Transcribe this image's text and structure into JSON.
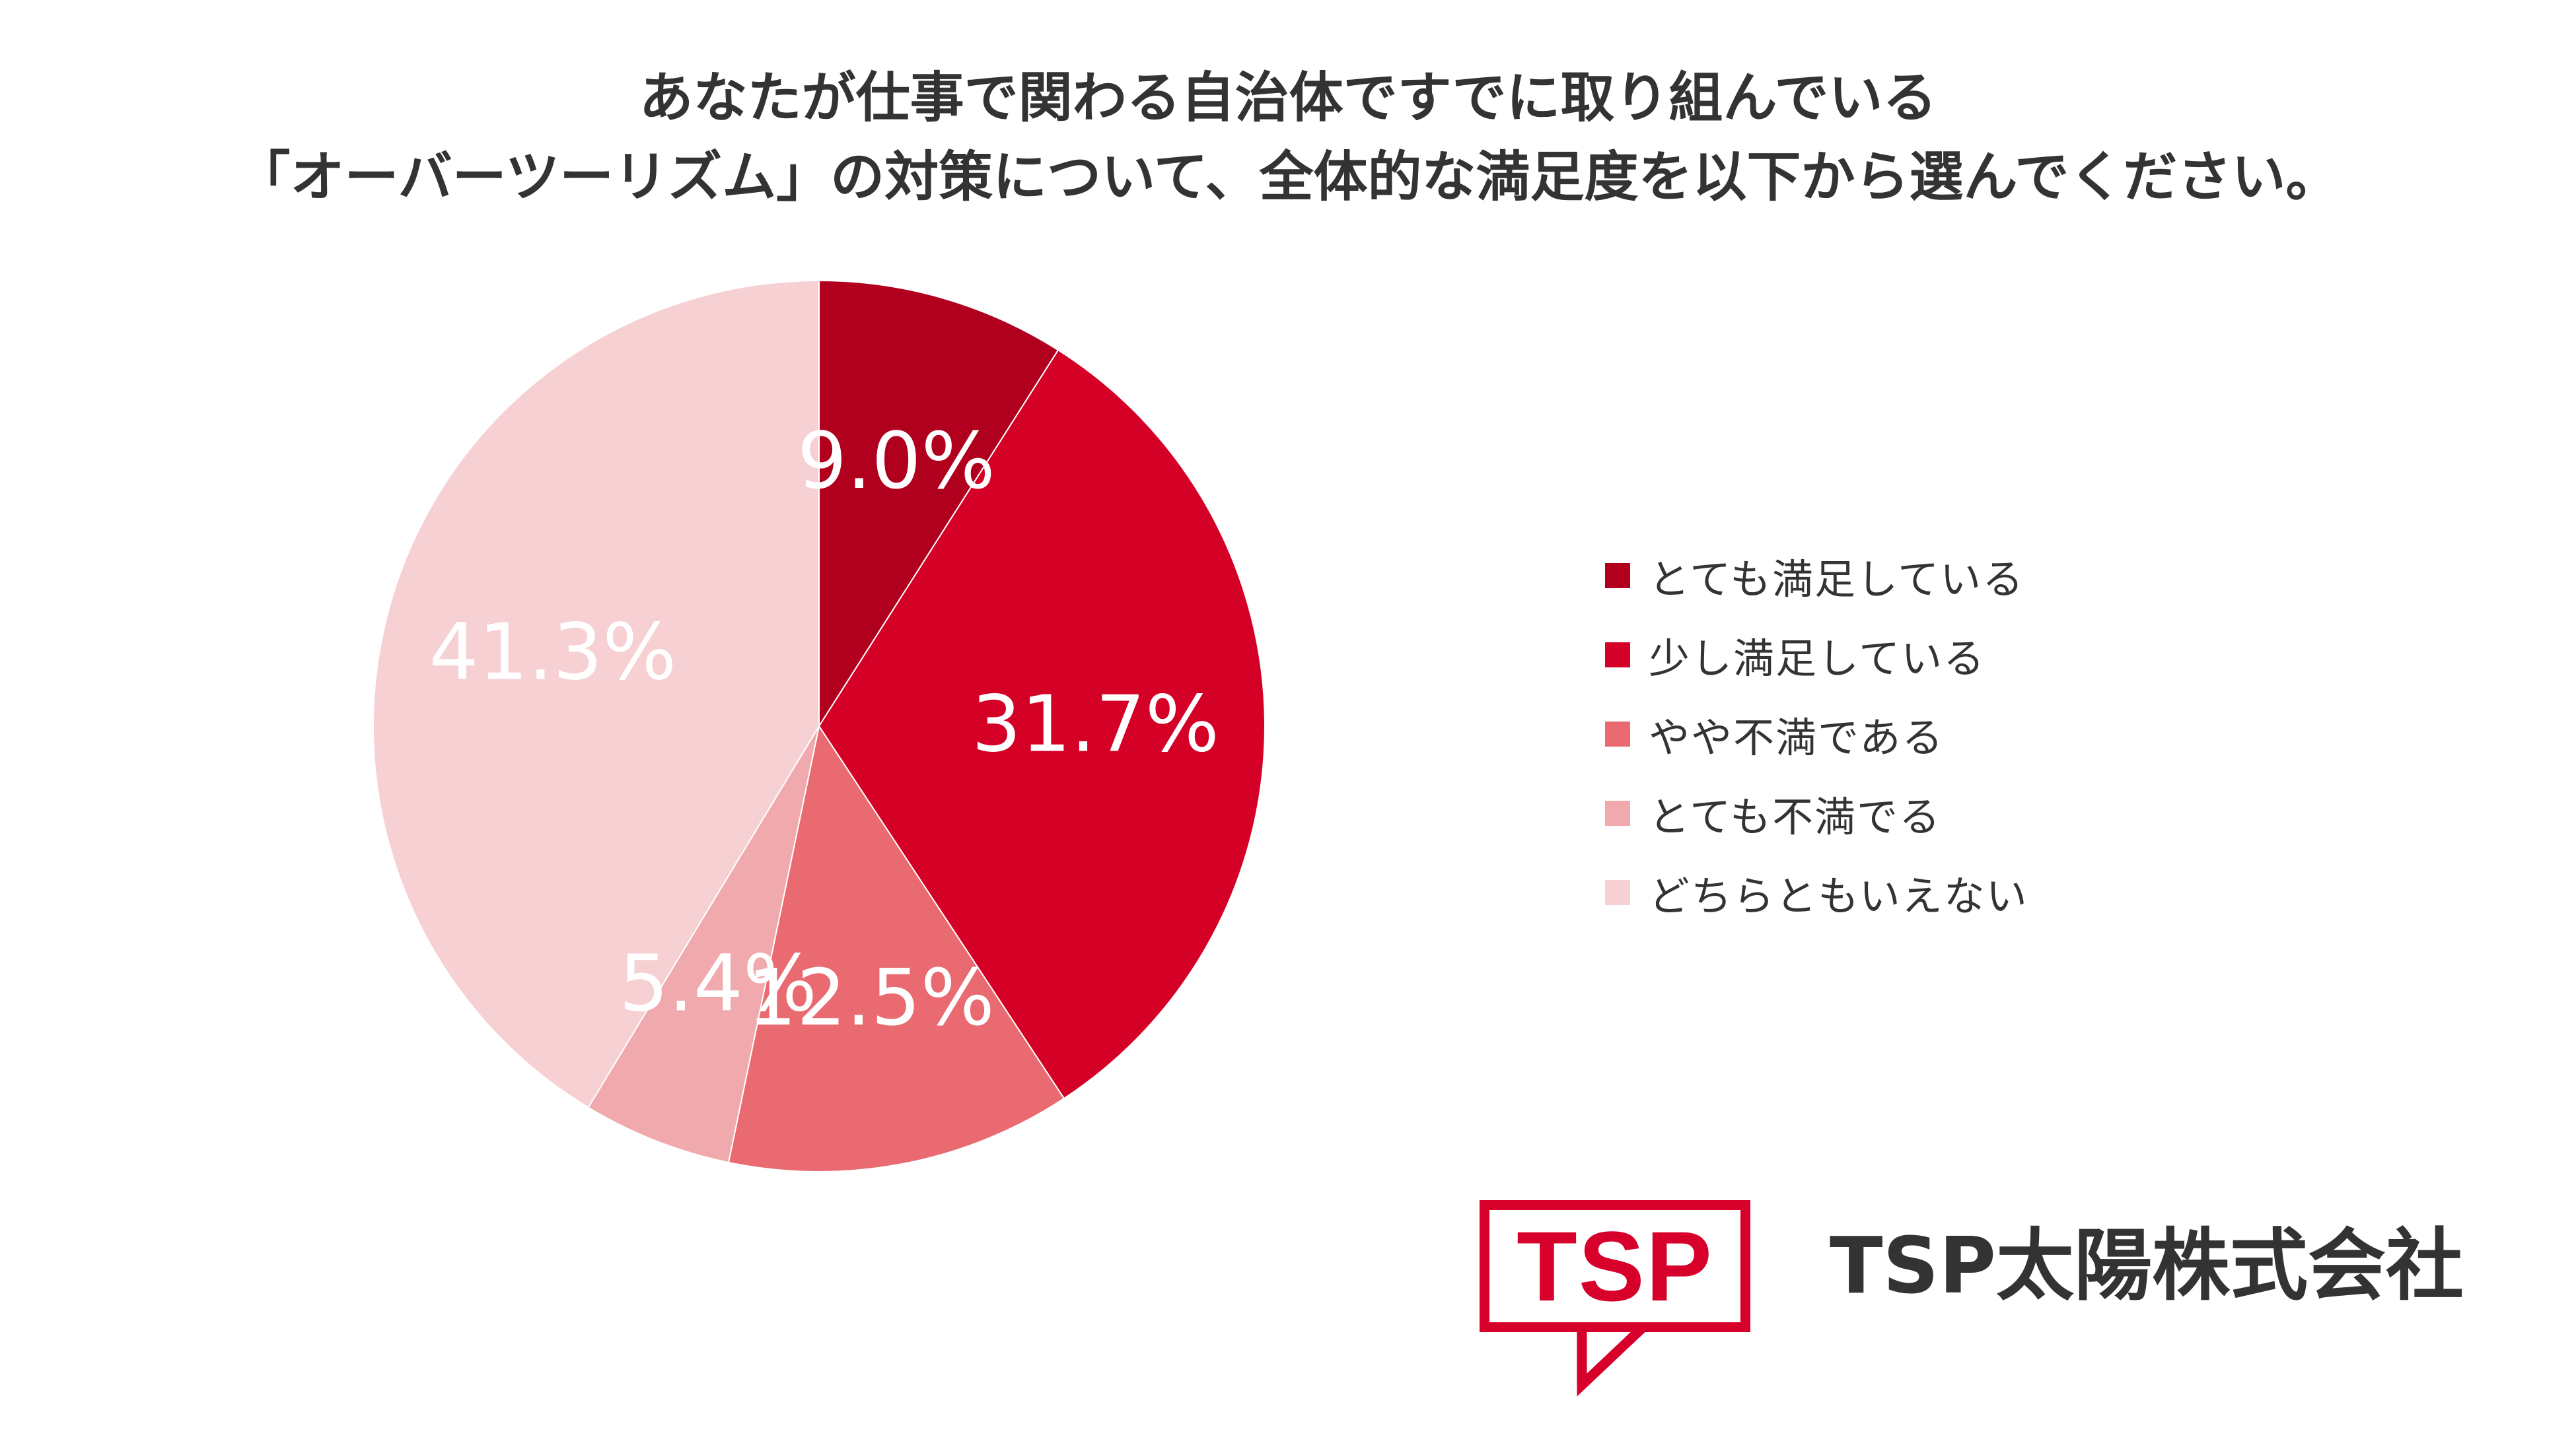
{
  "title": {
    "line1": "あなたが仕事で関わる自治体ですでに取り組んでいる",
    "line2": "「オーバーツーリズム」の対策について、全体的な満足度を以下から選んでください。"
  },
  "chart_data": {
    "type": "pie",
    "title": "あなたが仕事で関わる自治体ですでに取り組んでいる「オーバーツーリズム」の対策について、全体的な満足度を以下から選んでください。",
    "slices": [
      {
        "label": "とても満足している",
        "value": 9.0,
        "display": "9.0%",
        "color": "#b0001e",
        "label_color": "#ffffff"
      },
      {
        "label": "少し満足している",
        "value": 31.7,
        "display": "31.7%",
        "color": "#d40026",
        "label_color": "#ffffff"
      },
      {
        "label": "やや不満である",
        "value": 12.5,
        "display": "12.5%",
        "color": "#e96a70",
        "label_color": "#ffffff"
      },
      {
        "label": "とても不満でる",
        "value": 5.4,
        "display": "5.4%",
        "color": "#f0aaae",
        "label_color": "#ffffff"
      },
      {
        "label": "どちらともいえない",
        "value": 41.3,
        "display": "41.3%",
        "color": "#f6d0d2",
        "label_color": "#ffffff"
      }
    ],
    "start_angle": "12 o'clock",
    "direction": "clockwise",
    "legend_position": "right"
  },
  "legend": {
    "items": [
      {
        "label": "とても満足している",
        "color": "#b0001e"
      },
      {
        "label": "少し満足している",
        "color": "#d40026"
      },
      {
        "label": "やや不満である",
        "color": "#e96a70"
      },
      {
        "label": "とても不満でる",
        "color": "#f0aaae"
      },
      {
        "label": "どちらともいえない",
        "color": "#f6d0d2"
      }
    ]
  },
  "logo": {
    "mark": "TSP",
    "company": "TSP太陽株式会社",
    "color": "#d6002a"
  }
}
